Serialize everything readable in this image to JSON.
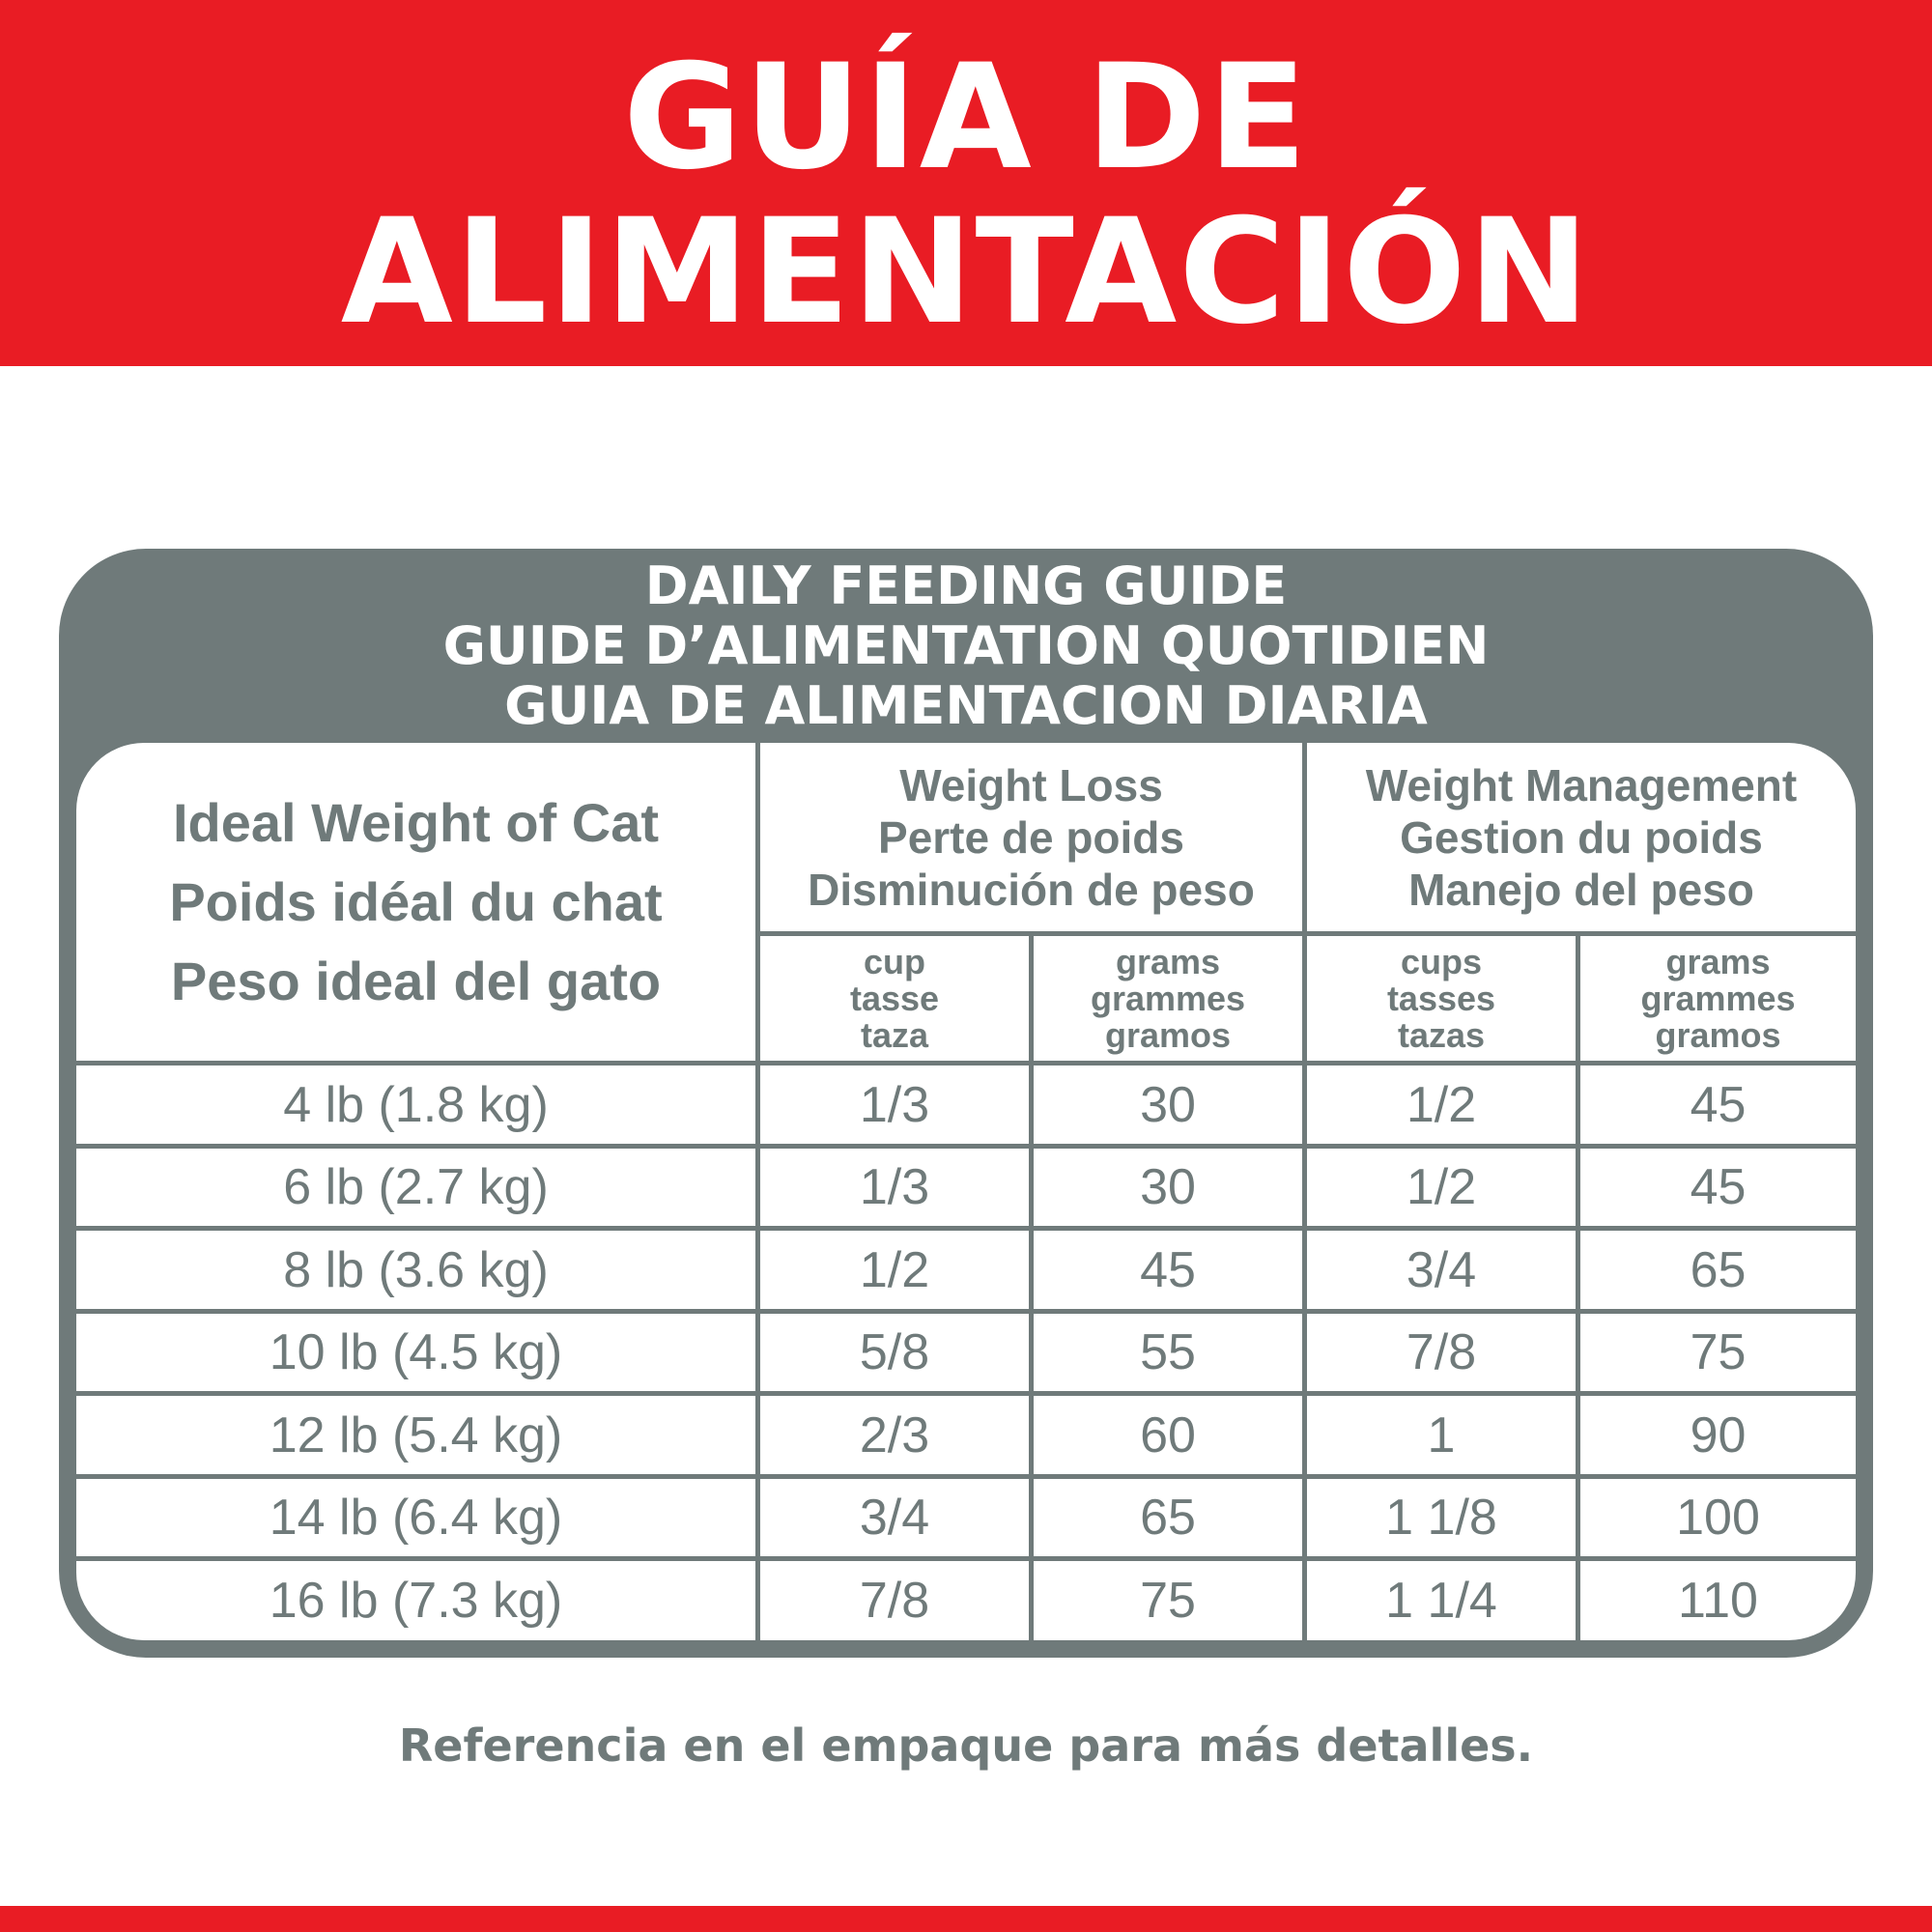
{
  "header": {
    "title_line1": "GUÍA DE",
    "title_line2": "ALIMENTACIÓN"
  },
  "panel": {
    "title_lines": [
      "DAILY FEEDING GUIDE",
      "GUIDE D’ALIMENTATION QUOTIDIEN",
      "GUIA DE ALIMENTACION DIARIA"
    ]
  },
  "table": {
    "weight_header": [
      "Ideal Weight of Cat",
      "Poids idéal du chat",
      "Peso ideal del gato"
    ],
    "groups": [
      {
        "label": [
          "Weight Loss",
          "Perte de poids",
          "Disminución de peso"
        ],
        "units": [
          [
            "cup",
            "tasse",
            "taza"
          ],
          [
            "grams",
            "grammes",
            "gramos"
          ]
        ]
      },
      {
        "label": [
          "Weight Management",
          "Gestion du poids",
          "Manejo del peso"
        ],
        "units": [
          [
            "cups",
            "tasses",
            "tazas"
          ],
          [
            "grams",
            "grammes",
            "gramos"
          ]
        ]
      }
    ],
    "rows": [
      [
        "4 lb (1.8 kg)",
        "1/3",
        "30",
        "1/2",
        "45"
      ],
      [
        "6 lb (2.7 kg)",
        "1/3",
        "30",
        "1/2",
        "45"
      ],
      [
        "8 lb (3.6 kg)",
        "1/2",
        "45",
        "3/4",
        "65"
      ],
      [
        "10 lb (4.5 kg)",
        "5/8",
        "55",
        "7/8",
        "75"
      ],
      [
        "12 lb (5.4 kg)",
        "2/3",
        "60",
        "1",
        "90"
      ],
      [
        "14 lb (6.4 kg)",
        "3/4",
        "65",
        "1 1/8",
        "100"
      ],
      [
        "16 lb (7.3 kg)",
        "7/8",
        "75",
        "1 1/4",
        "110"
      ]
    ]
  },
  "footer": {
    "note": "Referencia en el empaque para más detalles."
  },
  "colors": {
    "brand_red": "#e91c24",
    "gray": "#6f7a7a"
  }
}
